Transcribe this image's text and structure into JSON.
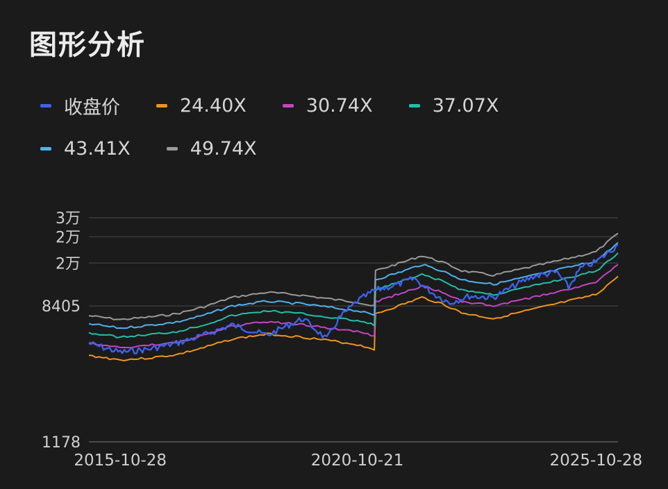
{
  "page": {
    "title": "图形分析"
  },
  "chart_data": {
    "type": "line",
    "y_scale": "log",
    "y_ticks": [
      {
        "value": 1178,
        "label": "1178"
      },
      {
        "value": 8405,
        "label": "8405"
      },
      {
        "value": 15632,
        "label": "2万"
      },
      {
        "value": 22859,
        "label": "2万"
      },
      {
        "value": 30086,
        "label": "3万"
      }
    ],
    "x_ticks": [
      "2015-10-28",
      "2020-10-21",
      "2025-10-28"
    ],
    "x_range": [
      "2015-03-01",
      "2026-04-15"
    ],
    "ylim": [
      1178,
      30086
    ],
    "grid": true,
    "legend_position": "top",
    "series": [
      {
        "name": "24.40X",
        "color": "#f0951c",
        "points": [
          [
            "2015-03-01",
            4100
          ],
          [
            "2015-10-28",
            3850
          ],
          [
            "2016-06-01",
            3950
          ],
          [
            "2017-01-01",
            4150
          ],
          [
            "2017-08-01",
            4600
          ],
          [
            "2018-03-01",
            5200
          ],
          [
            "2018-12-01",
            5600
          ],
          [
            "2019-09-01",
            5350
          ],
          [
            "2020-06-01",
            5000
          ],
          [
            "2020-10-21",
            4800
          ],
          [
            "2021-03-01",
            4500
          ],
          [
            "2021-03-10",
            7500
          ],
          [
            "2021-09-01",
            8400
          ],
          [
            "2022-03-01",
            9500
          ],
          [
            "2022-08-01",
            8700
          ],
          [
            "2023-01-01",
            7600
          ],
          [
            "2023-09-01",
            7000
          ],
          [
            "2024-06-01",
            7900
          ],
          [
            "2025-03-01",
            8900
          ],
          [
            "2025-10-28",
            9900
          ],
          [
            "2026-04-15",
            12900
          ]
        ]
      },
      {
        "name": "30.74X",
        "color": "#c545c5",
        "points": [
          [
            "2015-03-01",
            4900
          ],
          [
            "2015-10-28",
            4600
          ],
          [
            "2016-06-01",
            4750
          ],
          [
            "2017-01-01",
            4950
          ],
          [
            "2017-08-01",
            5500
          ],
          [
            "2018-03-01",
            6250
          ],
          [
            "2018-12-01",
            6700
          ],
          [
            "2019-09-01",
            6400
          ],
          [
            "2020-06-01",
            6000
          ],
          [
            "2020-10-21",
            5800
          ],
          [
            "2021-03-01",
            5450
          ],
          [
            "2021-03-10",
            8900
          ],
          [
            "2021-09-01",
            10000
          ],
          [
            "2022-03-01",
            11200
          ],
          [
            "2022-08-01",
            10300
          ],
          [
            "2023-01-01",
            9000
          ],
          [
            "2023-09-01",
            8400
          ],
          [
            "2024-06-01",
            9400
          ],
          [
            "2025-03-01",
            10600
          ],
          [
            "2025-10-28",
            11800
          ],
          [
            "2026-04-15",
            15300
          ]
        ]
      },
      {
        "name": "37.07X",
        "color": "#21bfa8",
        "points": [
          [
            "2015-03-01",
            5700
          ],
          [
            "2015-10-28",
            5350
          ],
          [
            "2016-06-01",
            5550
          ],
          [
            "2017-01-01",
            5800
          ],
          [
            "2017-08-01",
            6400
          ],
          [
            "2018-03-01",
            7300
          ],
          [
            "2018-12-01",
            7850
          ],
          [
            "2019-09-01",
            7500
          ],
          [
            "2020-06-01",
            7000
          ],
          [
            "2020-10-21",
            6800
          ],
          [
            "2021-03-01",
            6400
          ],
          [
            "2021-03-10",
            10600
          ],
          [
            "2021-09-01",
            11800
          ],
          [
            "2022-03-01",
            13200
          ],
          [
            "2022-08-01",
            12100
          ],
          [
            "2023-01-01",
            10600
          ],
          [
            "2023-09-01",
            9900
          ],
          [
            "2024-06-01",
            11100
          ],
          [
            "2025-03-01",
            12500
          ],
          [
            "2025-10-28",
            13900
          ],
          [
            "2026-04-15",
            18100
          ]
        ]
      },
      {
        "name": "43.41X",
        "color": "#4fb2f0",
        "points": [
          [
            "2015-03-01",
            6500
          ],
          [
            "2015-10-28",
            6100
          ],
          [
            "2016-06-01",
            6350
          ],
          [
            "2017-01-01",
            6650
          ],
          [
            "2017-08-01",
            7350
          ],
          [
            "2018-03-01",
            8400
          ],
          [
            "2018-12-01",
            9000
          ],
          [
            "2019-09-01",
            8650
          ],
          [
            "2020-06-01",
            8100
          ],
          [
            "2020-10-21",
            7850
          ],
          [
            "2021-03-01",
            7350
          ],
          [
            "2021-03-10",
            12300
          ],
          [
            "2021-09-01",
            13600
          ],
          [
            "2022-03-01",
            15300
          ],
          [
            "2022-08-01",
            14000
          ],
          [
            "2023-01-01",
            12300
          ],
          [
            "2023-09-01",
            11500
          ],
          [
            "2024-06-01",
            12900
          ],
          [
            "2025-03-01",
            14500
          ],
          [
            "2025-10-28",
            16100
          ],
          [
            "2026-04-15",
            21000
          ]
        ]
      },
      {
        "name": "49.74X",
        "color": "#9a9a9a",
        "points": [
          [
            "2015-03-01",
            7300
          ],
          [
            "2015-10-28",
            6900
          ],
          [
            "2016-06-01",
            7150
          ],
          [
            "2017-01-01",
            7500
          ],
          [
            "2017-08-01",
            8300
          ],
          [
            "2018-03-01",
            9500
          ],
          [
            "2018-12-01",
            10250
          ],
          [
            "2019-09-01",
            9800
          ],
          [
            "2020-06-01",
            9150
          ],
          [
            "2020-10-21",
            8900
          ],
          [
            "2021-03-01",
            8350
          ],
          [
            "2021-03-10",
            14000
          ],
          [
            "2021-09-01",
            15500
          ],
          [
            "2022-03-01",
            17400
          ],
          [
            "2022-08-01",
            15900
          ],
          [
            "2023-01-01",
            14000
          ],
          [
            "2023-09-01",
            13100
          ],
          [
            "2024-06-01",
            14700
          ],
          [
            "2025-03-01",
            16500
          ],
          [
            "2025-10-28",
            18400
          ],
          [
            "2026-04-15",
            24000
          ]
        ]
      },
      {
        "name": "收盘价",
        "color": "#3d62e8",
        "points": [
          [
            "2015-03-01",
            4900
          ],
          [
            "2015-10-28",
            4300
          ],
          [
            "2016-06-01",
            4500
          ],
          [
            "2017-01-01",
            4900
          ],
          [
            "2017-08-01",
            5500
          ],
          [
            "2018-03-01",
            6400
          ],
          [
            "2018-12-01",
            5500
          ],
          [
            "2019-06-01",
            6500
          ],
          [
            "2019-09-01",
            7000
          ],
          [
            "2020-03-01",
            5200
          ],
          [
            "2020-06-01",
            7000
          ],
          [
            "2020-10-21",
            9000
          ],
          [
            "2021-03-01",
            10500
          ],
          [
            "2021-09-01",
            11500
          ],
          [
            "2022-01-01",
            12500
          ],
          [
            "2022-06-01",
            10000
          ],
          [
            "2022-10-01",
            8800
          ],
          [
            "2023-03-01",
            9700
          ],
          [
            "2023-09-01",
            9500
          ],
          [
            "2024-03-01",
            11500
          ],
          [
            "2024-07-01",
            12900
          ],
          [
            "2025-01-01",
            13700
          ],
          [
            "2025-04-01",
            11000
          ],
          [
            "2025-07-01",
            14500
          ],
          [
            "2025-10-28",
            15900
          ],
          [
            "2026-04-15",
            20300
          ]
        ]
      }
    ]
  }
}
